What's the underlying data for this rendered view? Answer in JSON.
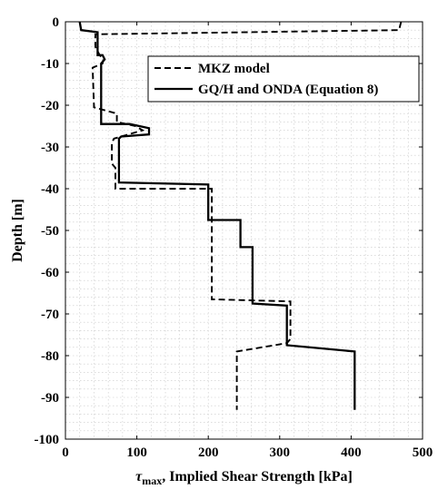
{
  "chart_data": {
    "type": "line",
    "xlabel_symbol": "τ",
    "xlabel_subscript": "max",
    "xlabel_rest": ", Implied Shear Strength [kPa]",
    "ylabel": "Depth [m]",
    "xlim": [
      0,
      500
    ],
    "ylim": [
      -100,
      0
    ],
    "x_ticks": [
      0,
      100,
      200,
      300,
      400,
      500
    ],
    "y_ticks": [
      0,
      -10,
      -20,
      -30,
      -40,
      -50,
      -60,
      -70,
      -80,
      -90,
      -100
    ],
    "x_minor_step": 20,
    "y_minor_step": 2,
    "grid": true,
    "legend_position": "top-right",
    "series": [
      {
        "name": "MKZ model",
        "style": "dashed",
        "color": "#000000",
        "x": [
          470,
          467,
          42,
          42,
          48,
          53,
          52,
          38,
          38,
          40,
          40,
          72,
          72,
          98,
          108,
          68,
          65,
          65,
          70,
          70,
          205,
          205,
          205,
          205,
          315,
          315,
          310,
          240,
          240
        ],
        "y": [
          0,
          -2,
          -3,
          -6,
          -8,
          -9,
          -10,
          -11,
          -11,
          -20,
          -20.5,
          -22,
          -24,
          -25,
          -26,
          -28,
          -29,
          -34,
          -35,
          -40,
          -40,
          -66,
          -66.5,
          -66.5,
          -67,
          -76,
          -77,
          -79,
          -93
        ]
      },
      {
        "name": "GQ/H and ONDA (Equation 8)",
        "style": "solid",
        "color": "#000000",
        "x": [
          20,
          22,
          45,
          45,
          52,
          55,
          50,
          50,
          50,
          90,
          117,
          117,
          78,
          75,
          75,
          200,
          200,
          245,
          245,
          262,
          262,
          262,
          310,
          310,
          310,
          405,
          405
        ],
        "y": [
          0,
          -2,
          -2.5,
          -8,
          -8,
          -9,
          -10,
          -20,
          -24.5,
          -24.5,
          -25.5,
          -27,
          -27.5,
          -28,
          -38.5,
          -39,
          -47.5,
          -47.5,
          -54,
          -54,
          -67.5,
          -67.5,
          -68,
          -77.5,
          -77.5,
          -79,
          -93
        ]
      }
    ]
  }
}
